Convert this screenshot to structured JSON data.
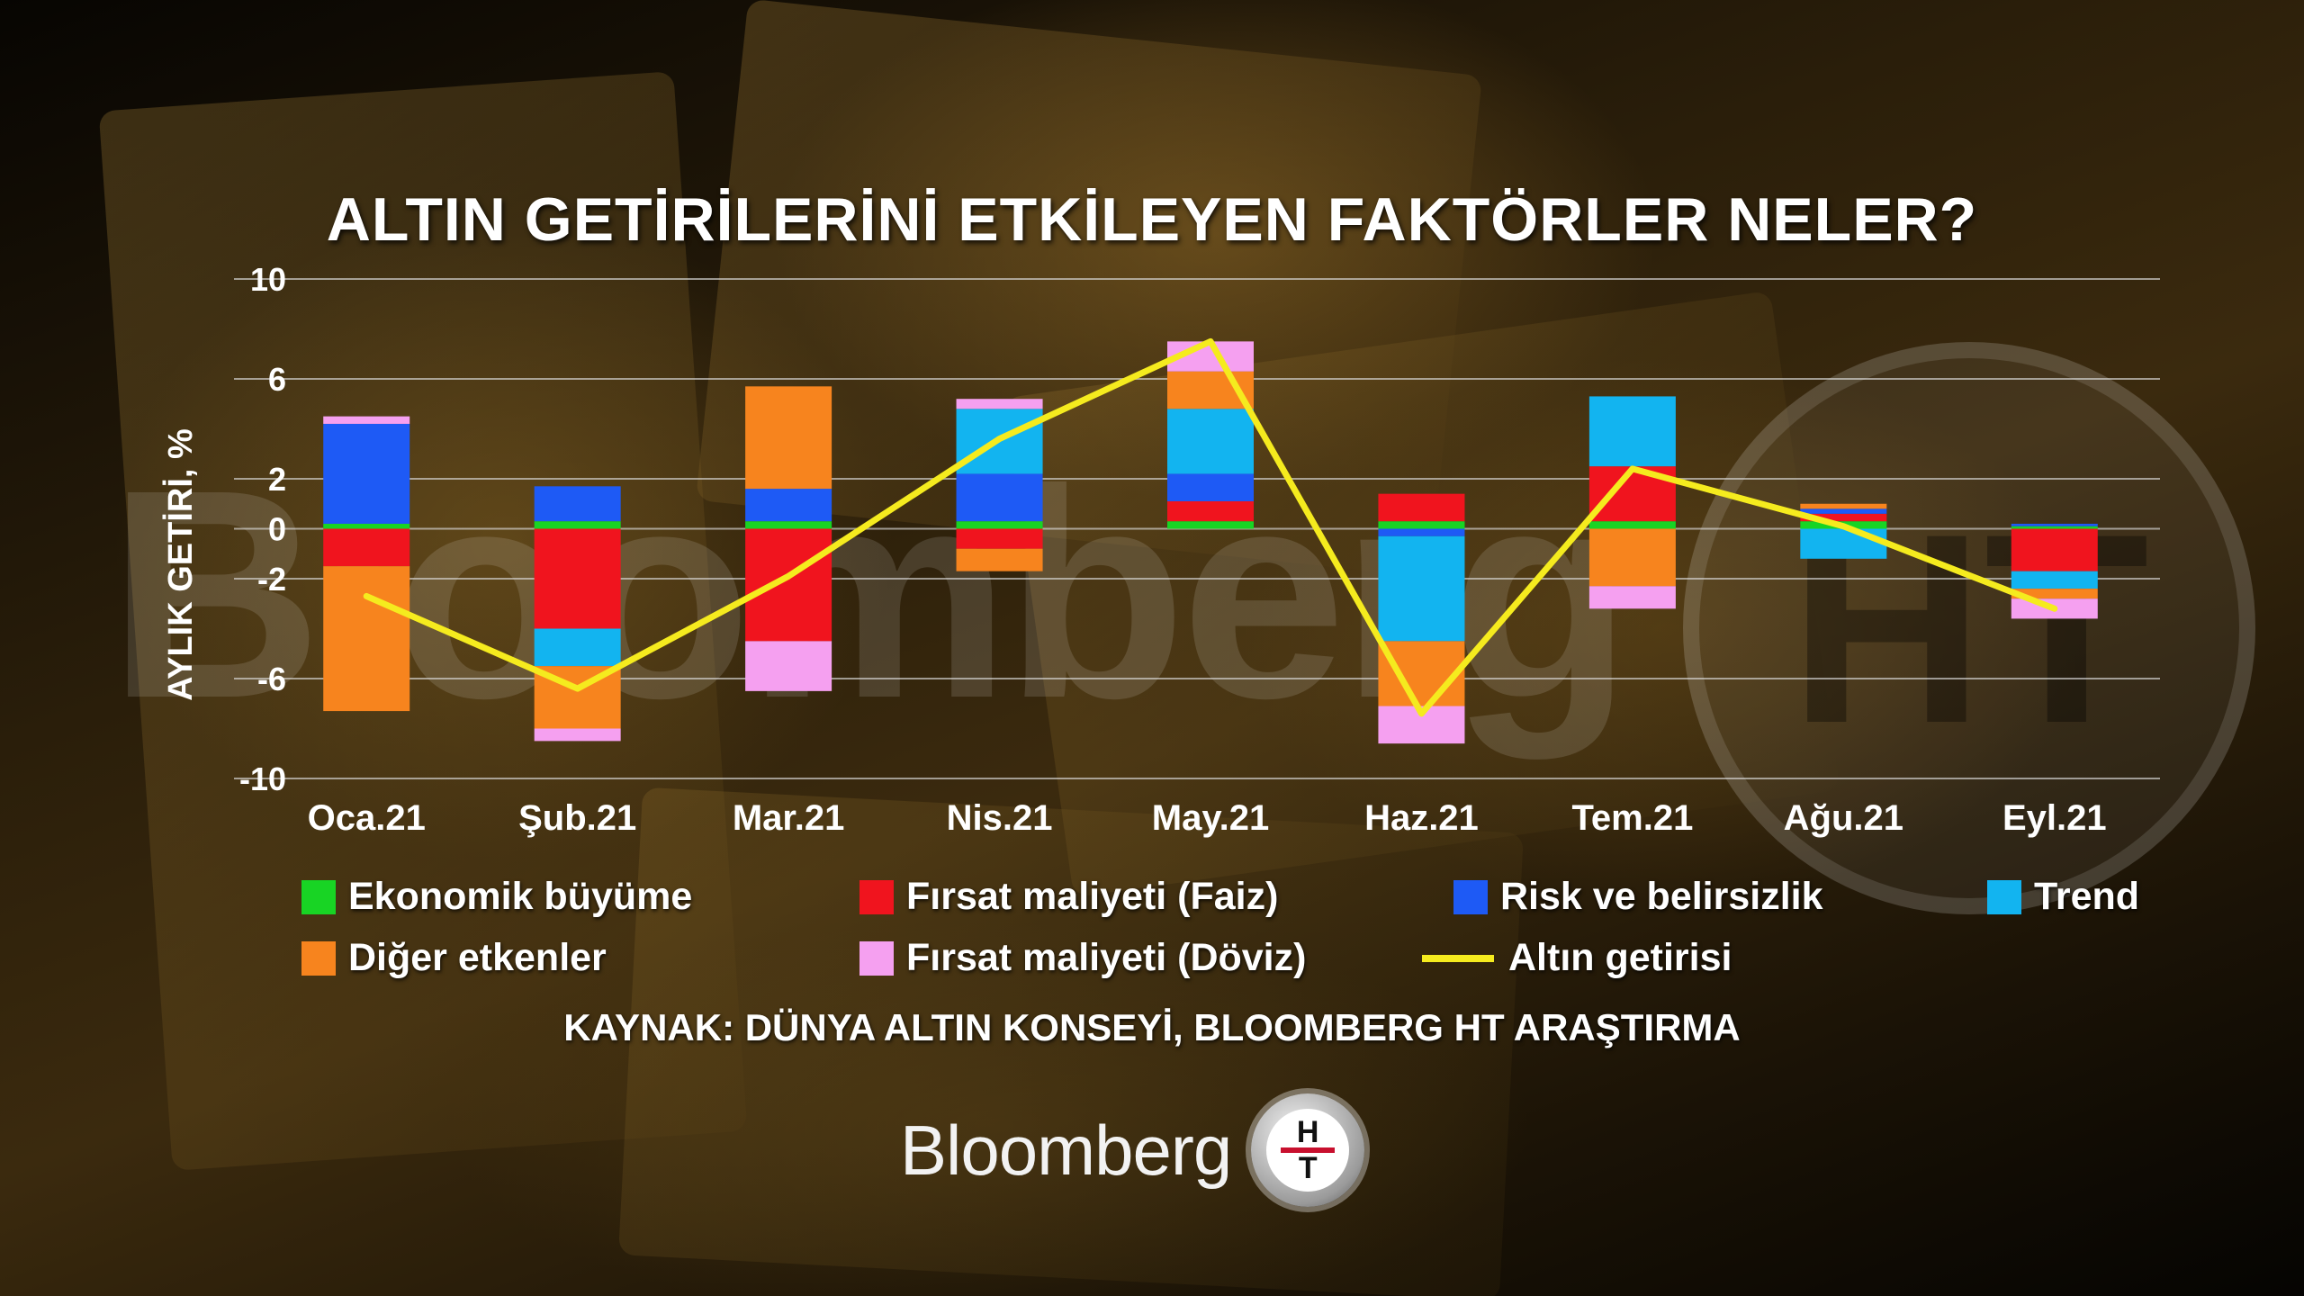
{
  "chart_data": {
    "type": "bar",
    "stacked": true,
    "title": "ALTIN GETİRİLERİNİ ETKİLEYEN FAKTÖRLER NELER?",
    "ylabel": "AYLIK GETİRİ, %",
    "xlabel": "",
    "ylim": [
      -10,
      10
    ],
    "yticks": [
      "10",
      "6",
      "2",
      "0",
      "-2",
      "-6",
      "-10"
    ],
    "ytick_values": [
      10,
      6,
      2,
      0,
      -2,
      -6,
      -10
    ],
    "grid": true,
    "legend_position": "bottom",
    "categories": [
      "Oca.21",
      "Şub.21",
      "Mar.21",
      "Nis.21",
      "May.21",
      "Haz.21",
      "Tem.21",
      "Ağu.21",
      "Eyl.21"
    ],
    "series": [
      {
        "name": "Ekonomik büyüme",
        "color": "#18d424",
        "values": [
          0.2,
          0.3,
          0.3,
          0.3,
          0.3,
          0.3,
          0.3,
          0.3,
          0.1
        ]
      },
      {
        "name": "Fırsat maliyeti (Faiz)",
        "color": "#f0141e",
        "values": [
          -1.5,
          -4.0,
          -4.5,
          -0.8,
          0.8,
          1.1,
          2.2,
          0.3,
          -1.7
        ]
      },
      {
        "name": "Risk ve belirsizlik",
        "color": "#1e5af5",
        "values": [
          4.0,
          1.4,
          1.3,
          1.9,
          1.1,
          -0.3,
          0.0,
          0.2,
          0.1
        ]
      },
      {
        "name": "Trend",
        "color": "#12b4f0",
        "values": [
          0.0,
          -1.5,
          0.0,
          2.6,
          2.6,
          -4.2,
          2.8,
          -1.2,
          -0.7
        ]
      },
      {
        "name": "Diğer etkenler",
        "color": "#f7841e",
        "values": [
          -5.8,
          -2.5,
          4.1,
          -0.9,
          1.5,
          -2.6,
          -2.3,
          0.2,
          -0.4
        ]
      },
      {
        "name": "Fırsat maliyeti (Döviz)",
        "color": "#f5a0f0",
        "values": [
          0.3,
          -0.5,
          -2.0,
          0.4,
          1.2,
          -1.5,
          -0.9,
          0.0,
          -0.8
        ]
      }
    ],
    "line_series": {
      "name": "Altın getirisi",
      "color": "#f5eb1e",
      "values": [
        -2.7,
        -6.4,
        -1.9,
        3.6,
        7.5,
        -7.4,
        2.4,
        0.1,
        -3.2
      ]
    }
  },
  "legend": [
    {
      "label": "Ekonomik büyüme",
      "color": "#18d424",
      "kind": "swatch"
    },
    {
      "label": "Fırsat maliyeti (Faiz)",
      "color": "#f0141e",
      "kind": "swatch"
    },
    {
      "label": "Risk ve belirsizlik",
      "color": "#1e5af5",
      "kind": "swatch"
    },
    {
      "label": "Trend",
      "color": "#12b4f0",
      "kind": "swatch"
    },
    {
      "label": "Diğer etkenler",
      "color": "#f7841e",
      "kind": "swatch"
    },
    {
      "label": "Fırsat maliyeti (Döviz)",
      "color": "#f5a0f0",
      "kind": "swatch"
    },
    {
      "label": "Altın getirisi",
      "color": "#f5eb1e",
      "kind": "line"
    }
  ],
  "source": "KAYNAK: DÜNYA ALTIN KONSEYİ, BLOOMBERG HT ARAŞTIRMA",
  "watermark": {
    "word": "Bloomberg",
    "logo": "HT"
  },
  "brand": {
    "word": "Bloomberg",
    "badge_top": "H",
    "badge_bottom": "T"
  }
}
